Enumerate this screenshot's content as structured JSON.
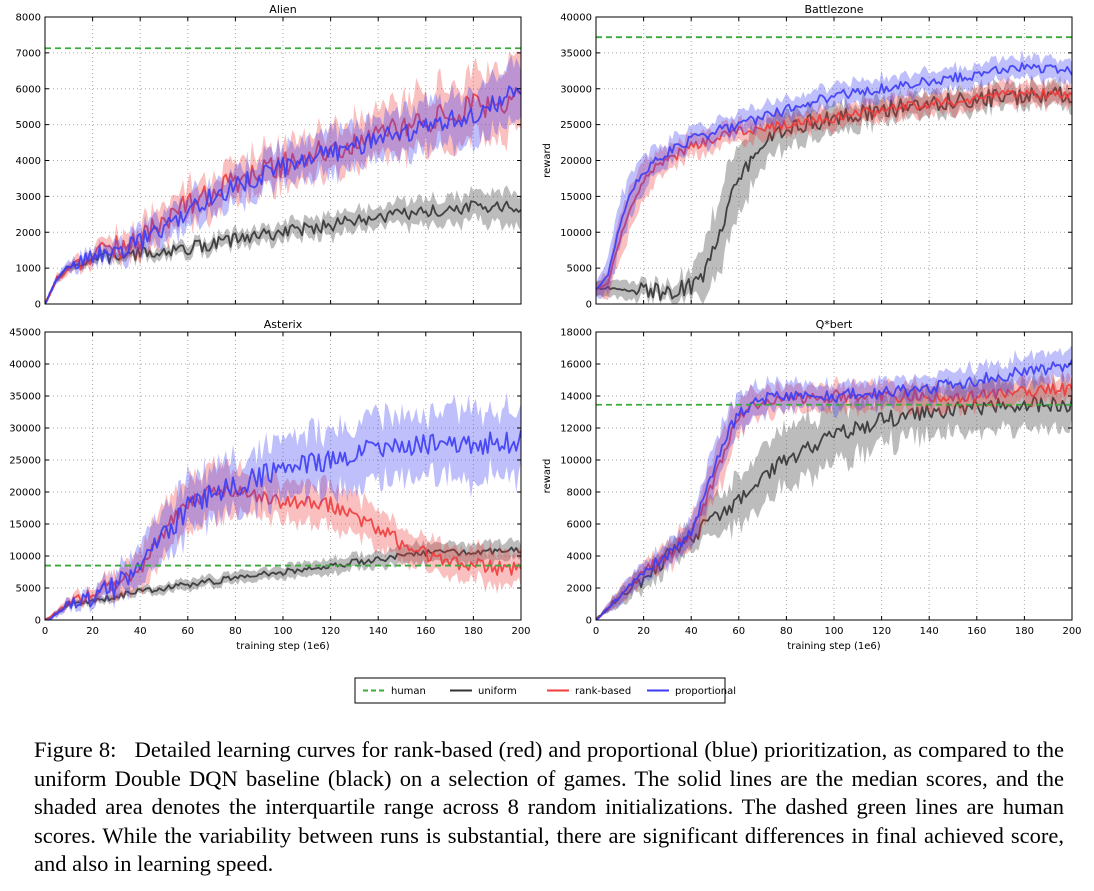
{
  "figure": {
    "xlabel": "training step (1e6)",
    "ylabel": "reward",
    "legend_position": "bottom-center",
    "caption_label": "Figure 8:",
    "caption_text": "Detailed learning curves for rank-based (red) and proportional (blue) prioritization, as compared to the uniform Double DQN baseline (black) on a selection of games. The solid lines are the median scores, and the shaded area denotes the interquartile range across 8 random initializations. The dashed green lines are human scores. While the variability between runs is substantial, there are significant differences in final achieved score, and also in learning speed."
  },
  "legend": [
    {
      "label": "human",
      "color": "#3aaa3a",
      "style": "dashed"
    },
    {
      "label": "uniform",
      "color": "#333333",
      "style": "solid"
    },
    {
      "label": "rank-based",
      "color": "#f03c3c",
      "style": "solid"
    },
    {
      "label": "proportional",
      "color": "#3c3cf5",
      "style": "solid"
    }
  ],
  "chart_data": [
    {
      "type": "line",
      "title": "Alien",
      "xlabel": "",
      "ylabel": "reward",
      "xlim": [
        0,
        200
      ],
      "ylim": [
        0,
        8000
      ],
      "xticks": [],
      "yticks": [
        0,
        1000,
        2000,
        3000,
        4000,
        5000,
        6000,
        7000,
        8000
      ],
      "grid": true,
      "human": 7128,
      "series": [
        {
          "name": "uniform",
          "color": "#333333",
          "x": [
            0,
            5,
            10,
            20,
            40,
            60,
            80,
            100,
            120,
            140,
            160,
            180,
            200
          ],
          "values": [
            0,
            700,
            1000,
            1250,
            1400,
            1550,
            1800,
            2000,
            2200,
            2400,
            2550,
            2700,
            2700
          ],
          "spread": [
            0,
            80,
            100,
            120,
            150,
            180,
            200,
            250,
            300,
            300,
            350,
            400,
            500
          ],
          "noise": 180
        },
        {
          "name": "rank-based",
          "color": "#f03c3c",
          "x": [
            0,
            5,
            10,
            20,
            40,
            60,
            80,
            100,
            120,
            140,
            160,
            180,
            200
          ],
          "values": [
            0,
            700,
            1000,
            1300,
            1800,
            2800,
            3400,
            3900,
            4300,
            4700,
            5100,
            5500,
            5700
          ],
          "spread": [
            0,
            100,
            150,
            200,
            400,
            500,
            500,
            600,
            600,
            700,
            800,
            900,
            1000
          ],
          "noise": 350
        },
        {
          "name": "proportional",
          "color": "#3c3cf5",
          "x": [
            0,
            5,
            10,
            20,
            40,
            60,
            80,
            100,
            120,
            140,
            160,
            180,
            200
          ],
          "values": [
            0,
            700,
            1050,
            1300,
            1700,
            2600,
            3300,
            3800,
            4200,
            4600,
            4900,
            5300,
            6000
          ],
          "spread": [
            0,
            100,
            150,
            200,
            350,
            450,
            450,
            500,
            550,
            600,
            650,
            700,
            800
          ],
          "noise": 280
        }
      ]
    },
    {
      "type": "line",
      "title": "Battlezone",
      "xlabel": "",
      "ylabel": "reward",
      "xlim": [
        0,
        200
      ],
      "ylim": [
        0,
        40000
      ],
      "xticks": [],
      "yticks": [
        0,
        5000,
        10000,
        15000,
        20000,
        25000,
        30000,
        35000,
        40000
      ],
      "grid": true,
      "human": 37188,
      "series": [
        {
          "name": "uniform",
          "color": "#333333",
          "x": [
            0,
            10,
            20,
            30,
            40,
            45,
            50,
            55,
            60,
            65,
            70,
            80,
            100,
            120,
            140,
            160,
            180,
            200
          ],
          "values": [
            2000,
            2500,
            2000,
            1500,
            2500,
            4000,
            8000,
            13000,
            18000,
            20000,
            22000,
            24500,
            26000,
            27000,
            28000,
            28500,
            29000,
            29000
          ],
          "spread": [
            1000,
            1200,
            1200,
            1000,
            2000,
            4000,
            5000,
            5000,
            4500,
            4000,
            3000,
            2500,
            2000,
            1500,
            1500,
            1500,
            1500,
            1500
          ],
          "noise": 1200
        },
        {
          "name": "rank-based",
          "color": "#f03c3c",
          "x": [
            0,
            5,
            10,
            15,
            20,
            25,
            30,
            40,
            60,
            80,
            100,
            120,
            140,
            160,
            180,
            200
          ],
          "values": [
            2000,
            3000,
            9000,
            14000,
            17000,
            19000,
            20000,
            22000,
            24000,
            25000,
            26000,
            27000,
            28000,
            28500,
            29500,
            29000
          ],
          "spread": [
            1000,
            2000,
            3000,
            3000,
            2500,
            2000,
            1500,
            1500,
            1500,
            1500,
            1500,
            1500,
            1500,
            1500,
            1500,
            1500
          ],
          "noise": 700
        },
        {
          "name": "proportional",
          "color": "#3c3cf5",
          "x": [
            0,
            5,
            10,
            15,
            20,
            25,
            30,
            40,
            60,
            80,
            100,
            120,
            140,
            160,
            180,
            200
          ],
          "values": [
            2000,
            4000,
            11000,
            16000,
            18500,
            20000,
            21000,
            23000,
            25000,
            27000,
            29000,
            30000,
            31000,
            32000,
            33000,
            32500
          ],
          "spread": [
            1000,
            2500,
            3500,
            3000,
            2500,
            2000,
            1500,
            1500,
            1500,
            1500,
            1500,
            1500,
            1500,
            1500,
            1500,
            1500
          ],
          "noise": 700
        }
      ]
    },
    {
      "type": "line",
      "title": "Asterix",
      "xlabel": "training step (1e6)",
      "ylabel": "",
      "xlim": [
        0,
        200
      ],
      "ylim": [
        0,
        45000
      ],
      "xticks": [
        0,
        20,
        40,
        60,
        80,
        100,
        120,
        140,
        160,
        180,
        200
      ],
      "yticks": [
        0,
        5000,
        10000,
        15000,
        20000,
        25000,
        30000,
        35000,
        40000,
        45000
      ],
      "grid": true,
      "human": 8503,
      "series": [
        {
          "name": "uniform",
          "color": "#333333",
          "x": [
            0,
            5,
            10,
            20,
            40,
            60,
            80,
            100,
            120,
            140,
            160,
            180,
            200
          ],
          "values": [
            0,
            1000,
            2500,
            3000,
            4500,
            5500,
            6500,
            7500,
            8500,
            9500,
            10500,
            10500,
            11000
          ],
          "spread": [
            0,
            300,
            400,
            500,
            600,
            800,
            800,
            1000,
            1200,
            1200,
            1500,
            1500,
            1500
          ],
          "noise": 500
        },
        {
          "name": "rank-based",
          "color": "#f03c3c",
          "x": [
            0,
            5,
            10,
            20,
            30,
            40,
            50,
            60,
            70,
            80,
            90,
            100,
            110,
            120,
            130,
            140,
            150,
            160,
            170,
            180,
            190,
            200
          ],
          "values": [
            0,
            1200,
            2800,
            4000,
            6000,
            8000,
            14000,
            18000,
            20000,
            20000,
            19000,
            18500,
            18500,
            18000,
            16500,
            14000,
            12000,
            10500,
            9000,
            8500,
            8000,
            8000
          ],
          "spread": [
            0,
            500,
            800,
            1000,
            2000,
            3000,
            4000,
            4000,
            4000,
            3500,
            3000,
            3000,
            3000,
            3000,
            3000,
            3000,
            2500,
            2500,
            2500,
            2500,
            2500,
            2500
          ],
          "noise": 1200
        },
        {
          "name": "proportional",
          "color": "#3c3cf5",
          "x": [
            0,
            5,
            10,
            20,
            30,
            40,
            50,
            60,
            70,
            80,
            90,
            100,
            120,
            140,
            160,
            180,
            200
          ],
          "values": [
            0,
            1000,
            2500,
            3500,
            5500,
            8000,
            13000,
            17500,
            19500,
            21000,
            22500,
            23500,
            25000,
            27000,
            27500,
            27500,
            28000
          ],
          "spread": [
            0,
            500,
            700,
            1000,
            2000,
            3000,
            4000,
            4000,
            4000,
            4000,
            4000,
            4500,
            5000,
            5000,
            5000,
            5500,
            5500
          ],
          "noise": 1800
        }
      ]
    },
    {
      "type": "line",
      "title": "Q*bert",
      "xlabel": "training step (1e6)",
      "ylabel": "reward",
      "xlim": [
        0,
        200
      ],
      "ylim": [
        0,
        18000
      ],
      "xticks": [
        0,
        20,
        40,
        60,
        80,
        100,
        120,
        140,
        160,
        180,
        200
      ],
      "yticks": [
        0,
        2000,
        4000,
        6000,
        8000,
        10000,
        12000,
        14000,
        16000,
        18000
      ],
      "grid": true,
      "human": 13455,
      "series": [
        {
          "name": "uniform",
          "color": "#333333",
          "x": [
            0,
            10,
            20,
            30,
            40,
            50,
            60,
            70,
            80,
            90,
            100,
            110,
            120,
            140,
            160,
            180,
            200
          ],
          "values": [
            0,
            1500,
            2500,
            4000,
            5000,
            6500,
            7500,
            9000,
            10000,
            10800,
            11500,
            12000,
            12500,
            13000,
            13300,
            13500,
            13500
          ],
          "spread": [
            0,
            500,
            600,
            700,
            800,
            1200,
            1500,
            1800,
            1800,
            1800,
            1800,
            1600,
            1500,
            1500,
            1500,
            1500,
            1500
          ],
          "noise": 500
        },
        {
          "name": "rank-based",
          "color": "#f03c3c",
          "x": [
            0,
            10,
            20,
            30,
            40,
            45,
            50,
            55,
            60,
            65,
            70,
            80,
            100,
            120,
            140,
            160,
            180,
            200
          ],
          "values": [
            0,
            1500,
            3000,
            4000,
            5500,
            7000,
            9000,
            11000,
            12500,
            13200,
            13500,
            13800,
            14000,
            14000,
            14000,
            14000,
            14300,
            14500
          ],
          "spread": [
            0,
            500,
            600,
            700,
            900,
            1200,
            1400,
            1500,
            1200,
            1000,
            900,
            800,
            800,
            800,
            800,
            800,
            800,
            800
          ],
          "noise": 400
        },
        {
          "name": "proportional",
          "color": "#3c3cf5",
          "x": [
            0,
            10,
            20,
            30,
            40,
            45,
            50,
            55,
            60,
            65,
            70,
            80,
            100,
            120,
            140,
            160,
            180,
            200
          ],
          "values": [
            0,
            1500,
            3000,
            4000,
            5500,
            7500,
            9500,
            11500,
            13000,
            13500,
            13800,
            14000,
            14000,
            14200,
            14500,
            15000,
            15500,
            16000
          ],
          "spread": [
            0,
            500,
            600,
            700,
            900,
            1200,
            1400,
            1500,
            1200,
            1000,
            900,
            800,
            800,
            800,
            800,
            900,
            900,
            900
          ],
          "noise": 400
        }
      ]
    }
  ]
}
